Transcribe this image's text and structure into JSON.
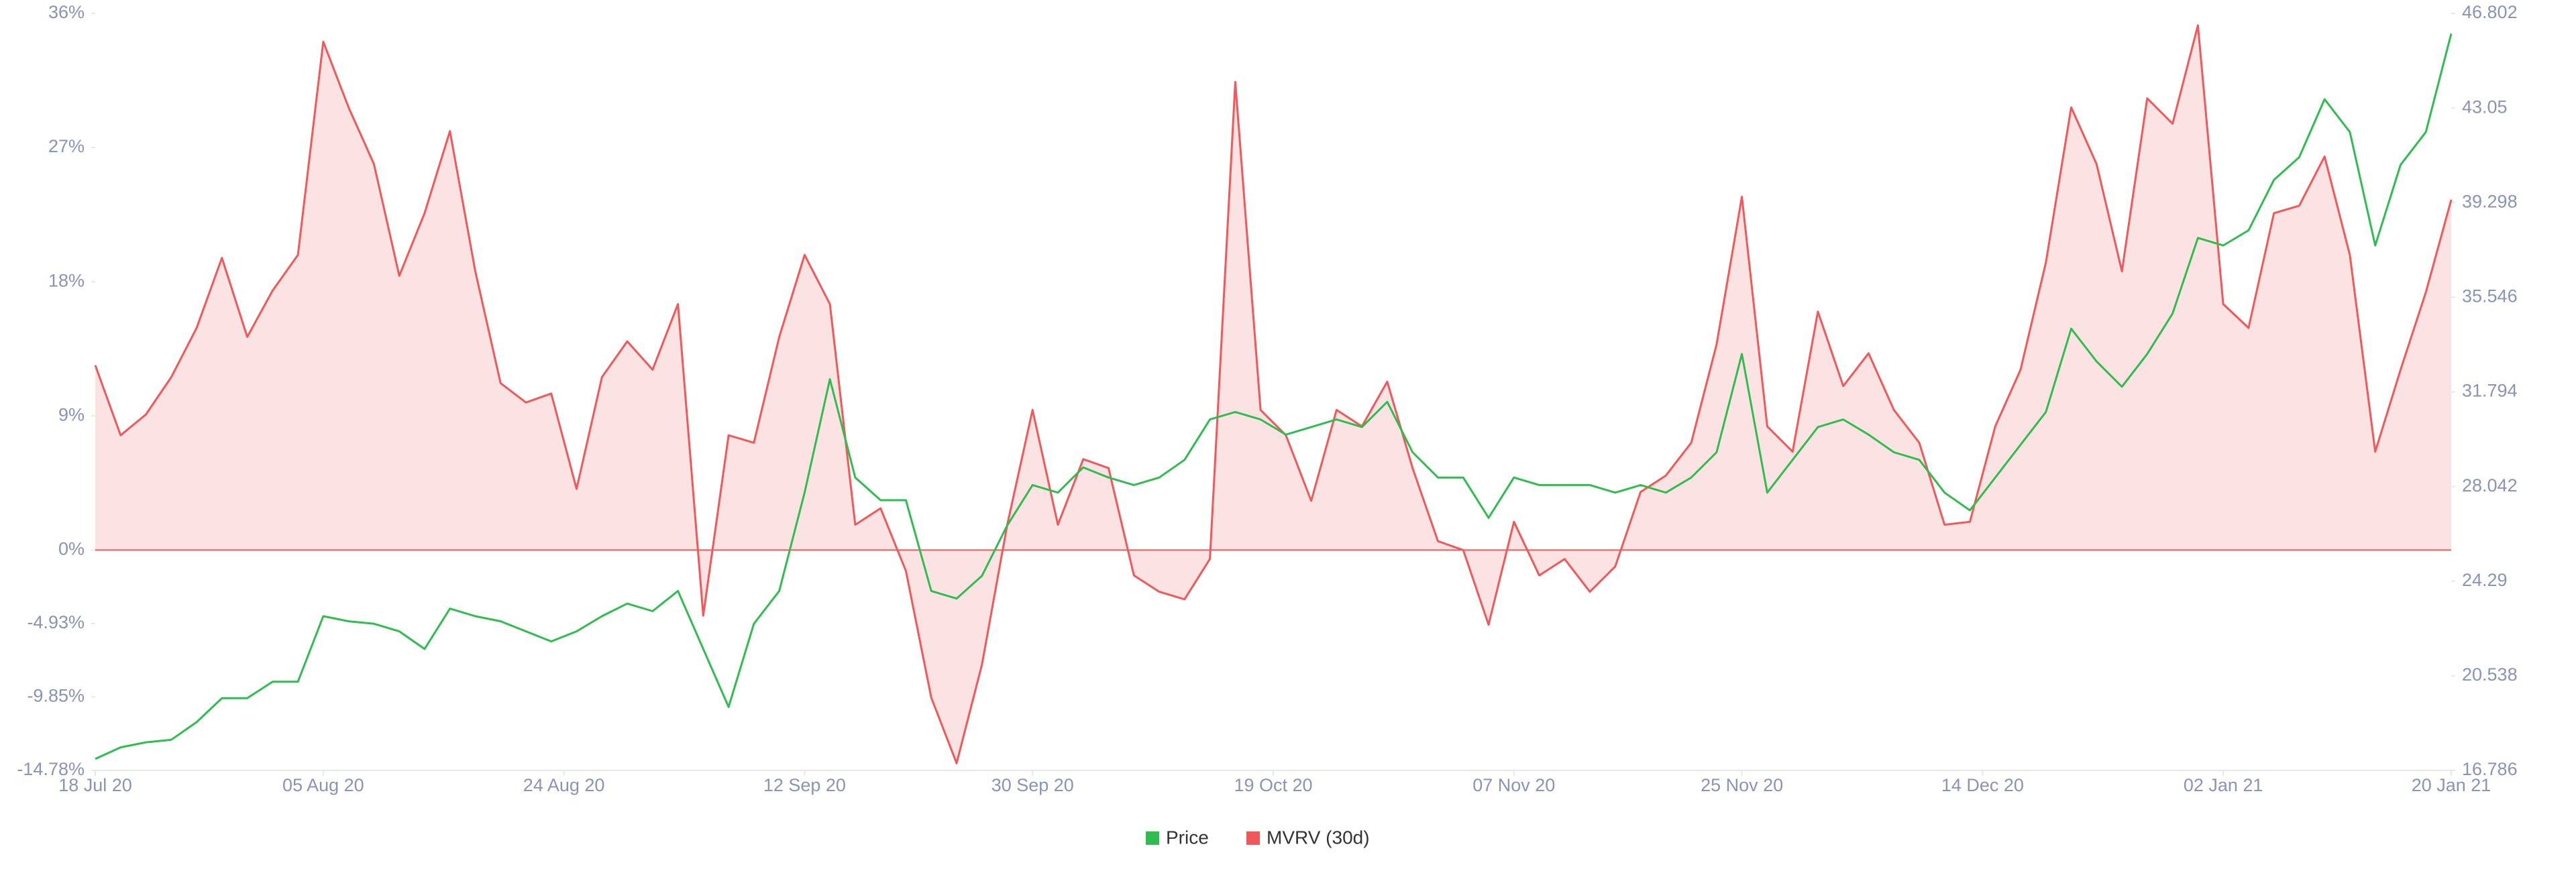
{
  "chart_data": {
    "type": "line",
    "x": [
      "2020-07-18",
      "2020-07-20",
      "2020-07-22",
      "2020-07-24",
      "2020-07-26",
      "2020-07-28",
      "2020-07-30",
      "2020-08-01",
      "2020-08-03",
      "2020-08-05",
      "2020-08-07",
      "2020-08-09",
      "2020-08-11",
      "2020-08-13",
      "2020-08-15",
      "2020-08-17",
      "2020-08-19",
      "2020-08-21",
      "2020-08-23",
      "2020-08-25",
      "2020-08-27",
      "2020-08-29",
      "2020-08-31",
      "2020-09-02",
      "2020-09-04",
      "2020-09-06",
      "2020-09-08",
      "2020-09-10",
      "2020-09-12",
      "2020-09-14",
      "2020-09-16",
      "2020-09-18",
      "2020-09-20",
      "2020-09-22",
      "2020-09-24",
      "2020-09-26",
      "2020-09-28",
      "2020-09-30",
      "2020-10-02",
      "2020-10-04",
      "2020-10-06",
      "2020-10-08",
      "2020-10-10",
      "2020-10-12",
      "2020-10-14",
      "2020-10-16",
      "2020-10-18",
      "2020-10-20",
      "2020-10-22",
      "2020-10-24",
      "2020-10-26",
      "2020-10-28",
      "2020-10-30",
      "2020-11-01",
      "2020-11-03",
      "2020-11-05",
      "2020-11-07",
      "2020-11-09",
      "2020-11-11",
      "2020-11-13",
      "2020-11-15",
      "2020-11-17",
      "2020-11-19",
      "2020-11-21",
      "2020-11-23",
      "2020-11-25",
      "2020-11-27",
      "2020-11-29",
      "2020-12-01",
      "2020-12-03",
      "2020-12-05",
      "2020-12-07",
      "2020-12-09",
      "2020-12-11",
      "2020-12-13",
      "2020-12-15",
      "2020-12-17",
      "2020-12-19",
      "2020-12-21",
      "2020-12-23",
      "2020-12-25",
      "2020-12-27",
      "2020-12-29",
      "2020-12-31",
      "2021-01-02",
      "2021-01-04",
      "2021-01-06",
      "2021-01-08",
      "2021-01-10",
      "2021-01-12",
      "2021-01-14",
      "2021-01-16",
      "2021-01-18",
      "2021-01-20"
    ],
    "series": [
      {
        "name": "Price",
        "color": "#2ebd4e",
        "axis": "y2",
        "values": [
          17.24,
          17.7,
          17.9,
          18.0,
          18.7,
          19.65,
          19.65,
          20.3,
          20.3,
          22.9,
          22.7,
          22.6,
          22.3,
          21.6,
          23.2,
          22.9,
          22.7,
          22.3,
          21.9,
          22.3,
          22.9,
          23.4,
          23.1,
          23.9,
          21.6,
          19.3,
          22.6,
          23.9,
          27.8,
          32.3,
          28.4,
          27.5,
          27.5,
          23.9,
          23.6,
          24.5,
          26.5,
          28.1,
          27.8,
          28.8,
          28.4,
          28.1,
          28.4,
          29.1,
          30.7,
          31.0,
          30.7,
          30.1,
          30.4,
          30.7,
          30.4,
          31.4,
          29.4,
          28.4,
          28.4,
          26.8,
          28.4,
          28.1,
          28.1,
          28.1,
          27.8,
          28.1,
          27.8,
          28.4,
          29.4,
          33.3,
          27.8,
          29.1,
          30.4,
          30.7,
          30.1,
          29.4,
          29.1,
          27.8,
          27.1,
          28.4,
          29.7,
          31.0,
          34.3,
          33.0,
          32.0,
          33.3,
          34.9,
          37.9,
          37.6,
          38.2,
          40.2,
          41.1,
          43.4,
          42.1,
          37.6,
          40.8,
          42.1,
          46.0
        ]
      },
      {
        "name": "MVRV (30d)",
        "color": "#f0585a",
        "values": [
          12.4,
          7.7,
          9.1,
          11.6,
          14.9,
          19.6,
          14.3,
          17.4,
          19.8,
          34.1,
          29.7,
          25.9,
          18.4,
          22.6,
          28.1,
          18.7,
          11.2,
          9.9,
          10.5,
          4.1,
          11.6,
          14,
          12.1,
          16.5,
          -4.4,
          7.7,
          7.2,
          14.3,
          19.8,
          16.5,
          1.7,
          2.8,
          -1.4,
          -9.9,
          -14.3,
          -7.7,
          1.7,
          9.4,
          1.7,
          6.1,
          5.5,
          -1.7,
          -2.8,
          -3.3,
          -0.6,
          31.4,
          9.4,
          7.7,
          3.3,
          9.4,
          8.3,
          11.3,
          5.5,
          0.6,
          0,
          -5,
          1.9,
          -1.7,
          -0.6,
          -2.8,
          -1.1,
          3.9,
          5,
          7.2,
          13.8,
          23.7,
          8.3,
          6.6,
          16,
          11,
          13.2,
          9.4,
          7.2,
          1.7,
          1.9,
          8.3,
          12.1,
          19.3,
          29.7,
          25.9,
          18.7,
          30.3,
          28.6,
          35.2,
          16.5,
          14.9,
          22.6,
          23.1,
          26.4,
          19.8,
          6.6,
          12.1,
          17.3,
          23.5
        ]
      }
    ],
    "xlim": [
      "2020-07-18",
      "2021-01-20"
    ],
    "xticks": [
      {
        "value": "2020-07-18",
        "label": "18 Jul 20"
      },
      {
        "value": "2020-08-05",
        "label": "05 Aug 20"
      },
      {
        "value": "2020-08-24",
        "label": "24 Aug 20"
      },
      {
        "value": "2020-09-12",
        "label": "12 Sep 20"
      },
      {
        "value": "2020-09-30",
        "label": "30 Sep 20"
      },
      {
        "value": "2020-10-19",
        "label": "19 Oct 20"
      },
      {
        "value": "2020-11-07",
        "label": "07 Nov 20"
      },
      {
        "value": "2020-11-25",
        "label": "25 Nov 20"
      },
      {
        "value": "2020-12-14",
        "label": "14 Dec 20"
      },
      {
        "value": "2021-01-02",
        "label": "02 Jan 21"
      },
      {
        "value": "2021-01-20",
        "label": "20 Jan 21"
      }
    ],
    "ylim": [
      -14.78,
      36
    ],
    "yticks": [
      {
        "value": 36,
        "label": "36%"
      },
      {
        "value": 27,
        "label": "27%"
      },
      {
        "value": 18,
        "label": "18%"
      },
      {
        "value": 9,
        "label": "9%"
      },
      {
        "value": 0,
        "label": "0%"
      },
      {
        "value": -4.93,
        "label": "-4.93%"
      },
      {
        "value": -9.85,
        "label": "-9.85%"
      },
      {
        "value": -14.78,
        "label": "-14.78%"
      }
    ],
    "y2lim": [
      16.786,
      46.802
    ],
    "y2ticks": [
      46.802,
      43.05,
      39.298,
      35.546,
      31.794,
      28.042,
      24.29,
      20.538,
      16.786
    ],
    "legend": "bottom"
  }
}
